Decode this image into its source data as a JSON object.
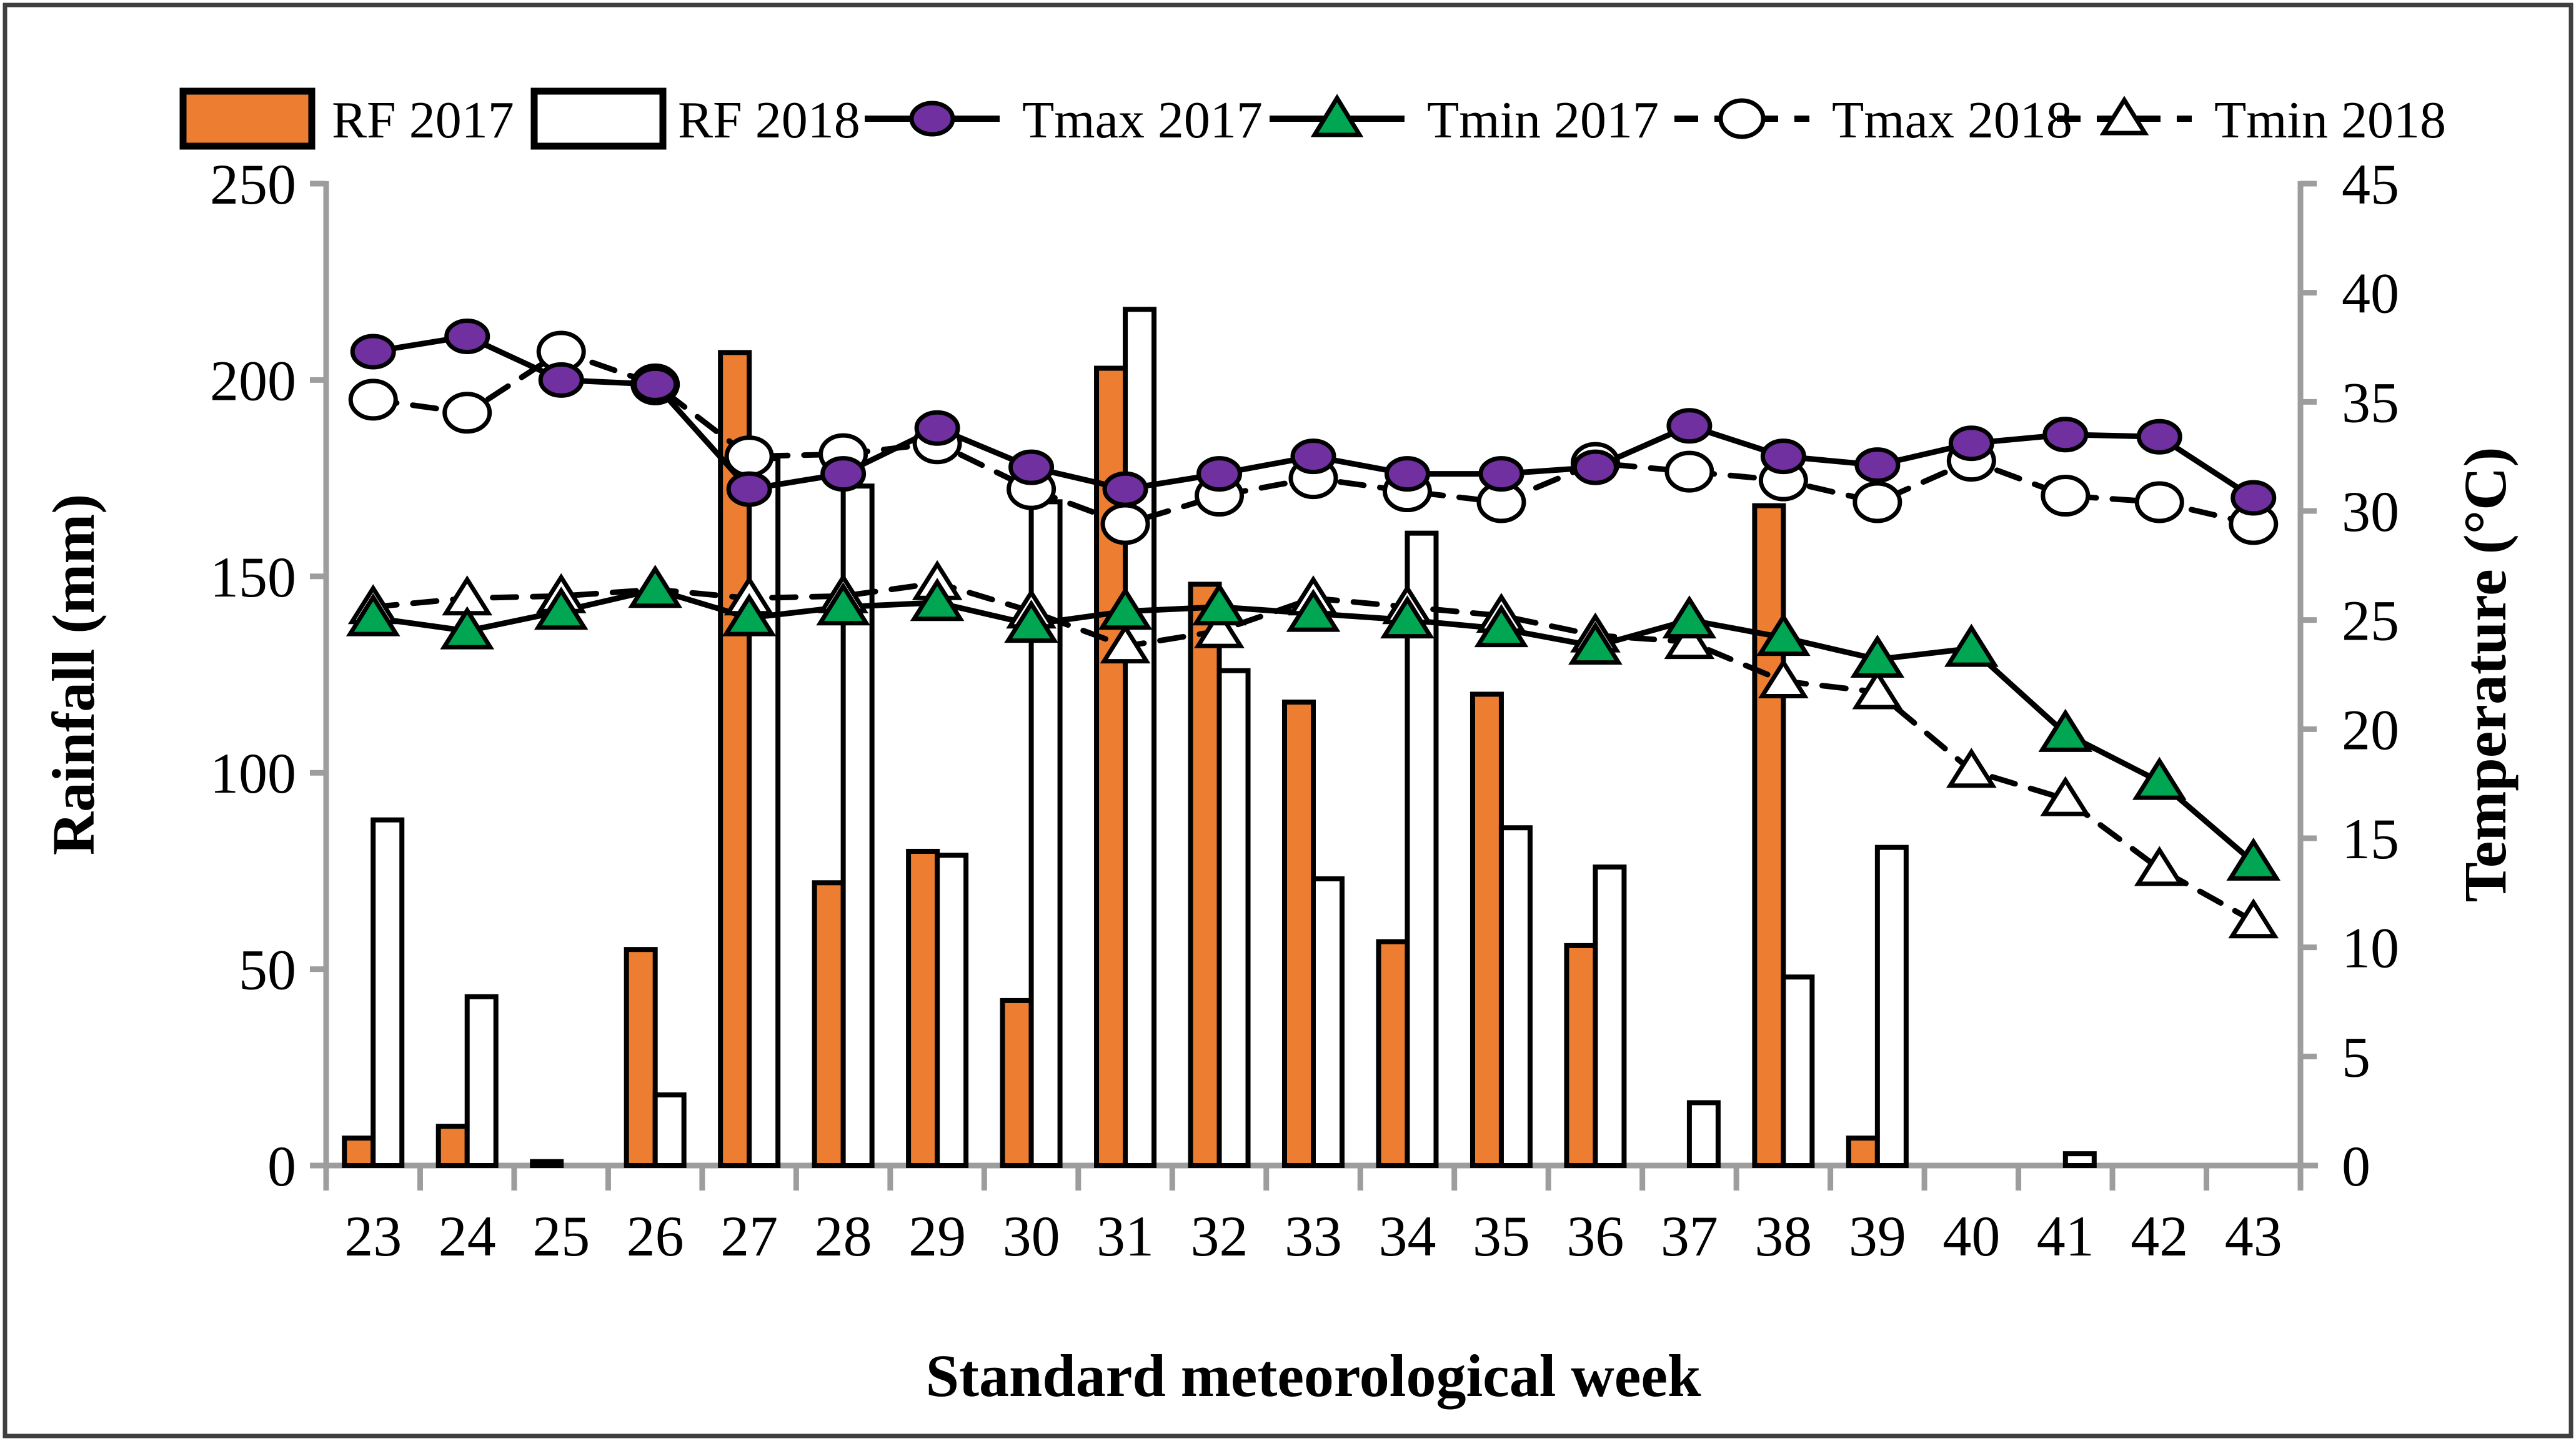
{
  "figure": {
    "x_axis_title": "Standard meteorological week",
    "y_left_title": "Rainfall (mm)",
    "y_right_title": "Temperature (°C)",
    "y_left_ticks": [
      0,
      50,
      100,
      150,
      200,
      250
    ],
    "y_right_ticks": [
      0,
      5,
      10,
      15,
      20,
      25,
      30,
      35,
      40,
      45
    ]
  },
  "legend": [
    {
      "label": "RF 2017",
      "marker": "bar-filled-swatch"
    },
    {
      "label": "RF 2018",
      "marker": "bar-open-swatch"
    },
    {
      "label": "Tmax 2017",
      "marker": "circle-filled",
      "line": "solid"
    },
    {
      "label": "Tmin 2017",
      "marker": "triangle-filled",
      "line": "solid"
    },
    {
      "label": "Tmax 2018",
      "marker": "circle-open",
      "line": "dashed"
    },
    {
      "label": "Tmin 2018",
      "marker": "triangle-open",
      "line": "dashed"
    }
  ],
  "colors": {
    "rf_2017_fill": "#ED7D31",
    "rf_2018_fill": "#FFFFFF",
    "tmax_2017_marker": "#7030A0",
    "tmin_2017_marker": "#00A651",
    "open_marker_fill": "#FFFFFF",
    "line_stroke": "#000000",
    "bar_outline": "#000000",
    "axis_gray": "#9D9D9D",
    "figure_border": "#3F3F3F",
    "text_color": "#000000"
  },
  "chart_data": {
    "type": "combo-bar-line-dual-axis",
    "title": "",
    "xlabel": "Standard meteorological week",
    "ylabel_left": "Rainfall (mm)",
    "ylabel_right": "Temperature (°C)",
    "ylim_left": [
      0,
      250
    ],
    "ylim_right": [
      0,
      45
    ],
    "grid": false,
    "legend_position": "top",
    "categories": [
      23,
      24,
      25,
      26,
      27,
      28,
      29,
      30,
      31,
      32,
      33,
      34,
      35,
      36,
      37,
      38,
      39,
      40,
      41,
      42,
      43
    ],
    "series": [
      {
        "name": "RF 2017",
        "type": "bar",
        "axis": "left",
        "unit": "mm",
        "values": [
          7,
          10,
          1,
          55,
          207,
          72,
          80,
          42,
          203,
          148,
          118,
          57,
          120,
          56,
          0,
          168,
          7,
          0,
          0,
          0,
          0
        ]
      },
      {
        "name": "RF 2018",
        "type": "bar",
        "axis": "left",
        "unit": "mm",
        "values": [
          88,
          43,
          0,
          18,
          180,
          173,
          79,
          169,
          218,
          126,
          73,
          161,
          86,
          76,
          16,
          48,
          81,
          0,
          3,
          0,
          0
        ]
      },
      {
        "name": "Tmax 2017",
        "type": "line",
        "style": "solid",
        "axis": "right",
        "unit": "degC",
        "values": [
          37.3,
          38.0,
          36.0,
          35.8,
          31.0,
          31.7,
          33.8,
          32.0,
          31.0,
          31.7,
          32.5,
          31.7,
          31.7,
          32.0,
          33.9,
          32.5,
          32.1,
          33.1,
          33.5,
          33.4,
          30.6
        ]
      },
      {
        "name": "Tmin 2017",
        "type": "line",
        "style": "solid",
        "axis": "right",
        "unit": "degC",
        "values": [
          25.1,
          24.5,
          25.4,
          26.4,
          25.1,
          25.6,
          25.8,
          24.8,
          25.4,
          25.6,
          25.3,
          25.0,
          24.6,
          23.8,
          25.0,
          24.2,
          23.2,
          23.7,
          19.8,
          17.6,
          13.9
        ]
      },
      {
        "name": "Tmax 2018",
        "type": "line",
        "style": "dashed",
        "axis": "right",
        "unit": "degC",
        "values": [
          35.1,
          34.5,
          37.3,
          35.8,
          32.5,
          32.6,
          33.1,
          31.0,
          29.4,
          30.7,
          31.5,
          30.9,
          30.4,
          32.2,
          31.8,
          31.4,
          30.4,
          32.3,
          30.7,
          30.4,
          29.4
        ]
      },
      {
        "name": "Tmin 2018",
        "type": "line",
        "style": "dashed",
        "axis": "right",
        "unit": "degC",
        "values": [
          25.6,
          26.0,
          26.1,
          26.4,
          26.0,
          26.1,
          26.7,
          25.4,
          23.8,
          24.5,
          26.0,
          25.6,
          25.2,
          24.3,
          24.0,
          22.2,
          21.7,
          18.1,
          16.8,
          13.6,
          11.2
        ]
      }
    ]
  }
}
